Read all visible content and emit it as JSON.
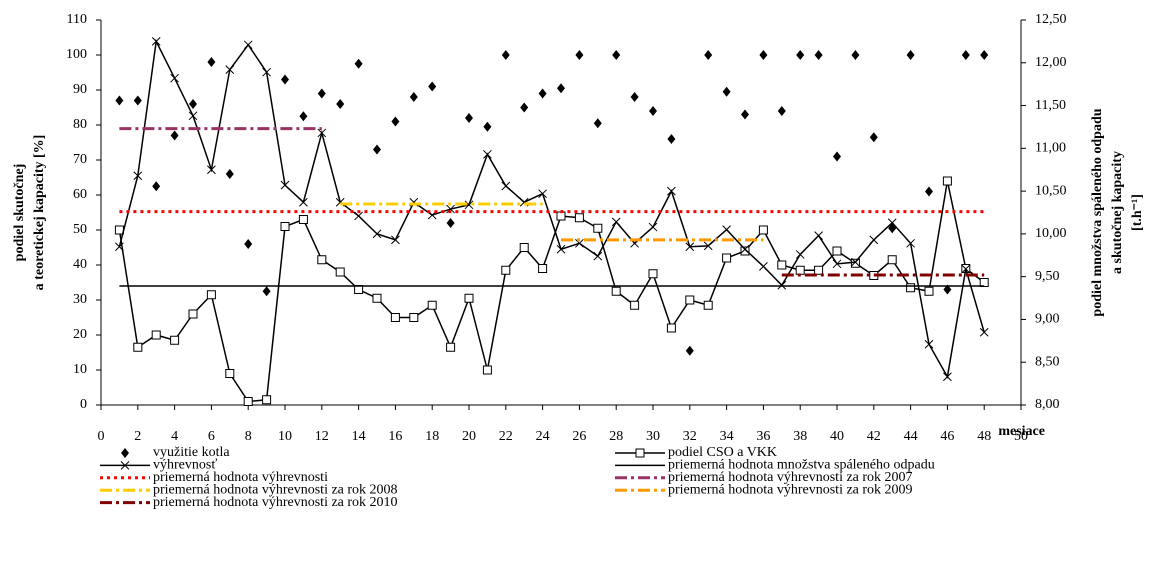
{
  "chart_data": {
    "type": "line",
    "x": [
      1,
      2,
      3,
      4,
      5,
      6,
      7,
      8,
      9,
      10,
      11,
      12,
      13,
      14,
      15,
      16,
      17,
      18,
      19,
      20,
      21,
      22,
      23,
      24,
      25,
      26,
      27,
      28,
      29,
      30,
      31,
      32,
      33,
      34,
      35,
      36,
      37,
      38,
      39,
      40,
      41,
      42,
      43,
      44,
      45,
      46,
      47,
      48
    ],
    "xlabel": "mesiace",
    "ylabel": [
      "podiel skutočnej",
      "a teoretickej kapacity [%]"
    ],
    "y2label": [
      "podiel množstva spáleného odpadu",
      "a skutočnej kapacity",
      "[t.h⁻¹]"
    ],
    "xlim": [
      0,
      50
    ],
    "xticks": [
      0,
      2,
      4,
      6,
      8,
      10,
      12,
      14,
      16,
      18,
      20,
      22,
      24,
      26,
      28,
      30,
      32,
      34,
      36,
      38,
      40,
      42,
      44,
      46,
      48,
      50
    ],
    "ylim": [
      0,
      110
    ],
    "yticks": [
      0,
      10,
      20,
      30,
      40,
      50,
      60,
      70,
      80,
      90,
      100,
      110
    ],
    "y2lim": [
      8,
      12.5
    ],
    "y2ticks": [
      {
        "value": 8,
        "label": "8,00"
      },
      {
        "value": 8.5,
        "label": "8,50"
      },
      {
        "value": 9,
        "label": "9,00"
      },
      {
        "value": 9.5,
        "label": "9,50"
      },
      {
        "value": 10,
        "label": "10,00"
      },
      {
        "value": 10.5,
        "label": "10,50"
      },
      {
        "value": 11,
        "label": "11,00"
      },
      {
        "value": 11.5,
        "label": "11,50"
      },
      {
        "value": 12,
        "label": "12,00"
      },
      {
        "value": 12.5,
        "label": "12,50"
      }
    ],
    "legend": "bottom",
    "series": [
      {
        "name": "využitie kotla",
        "color": "#000000",
        "marker": "diamond",
        "line": "none",
        "axis": "y",
        "values": [
          87,
          87,
          62.5,
          77,
          86,
          98,
          66,
          46,
          32.5,
          93,
          82.5,
          89,
          86,
          97.5,
          73,
          81,
          88,
          91,
          52,
          82,
          79.5,
          100,
          85,
          89,
          90.5,
          100,
          80.5,
          100,
          88,
          84,
          76,
          15.5,
          100,
          89.5,
          83,
          100,
          84,
          100,
          100,
          71,
          100,
          76.5,
          50.5,
          100,
          61,
          33,
          100,
          100
        ]
      },
      {
        "name": "podiel CSO a VKK",
        "color": "#000000",
        "marker": "square",
        "line": "solid",
        "axis": "y",
        "values": [
          50,
          16.5,
          20,
          18.5,
          26,
          31.5,
          9,
          1,
          1.5,
          51,
          53,
          41.5,
          38,
          33,
          30.5,
          25,
          25,
          28.5,
          16.5,
          30.5,
          10,
          38.5,
          45,
          39,
          54,
          53.5,
          50.5,
          32.5,
          28.5,
          37.5,
          22,
          30,
          28.5,
          42,
          44,
          50,
          40,
          38.5,
          38.5,
          44,
          40.5,
          37,
          41.5,
          33.5,
          32.5,
          64,
          39,
          35
        ]
      },
      {
        "name": "výhrevnosť",
        "color": "#000000",
        "marker": "x",
        "line": "solid",
        "axis": "y2",
        "values": [
          9.85,
          10.68,
          12.25,
          11.82,
          11.38,
          10.75,
          11.92,
          12.21,
          11.89,
          10.57,
          10.37,
          11.18,
          10.37,
          10.21,
          10.0,
          9.93,
          10.37,
          10.22,
          10.29,
          10.34,
          10.93,
          10.56,
          10.37,
          10.47,
          9.82,
          9.89,
          9.74,
          10.14,
          9.89,
          10.08,
          10.5,
          9.85,
          9.86,
          10.05,
          9.82,
          9.62,
          9.4,
          9.76,
          9.98,
          9.65,
          9.67,
          9.93,
          10.13,
          9.89,
          8.71,
          8.33,
          9.59,
          8.85
        ]
      },
      {
        "name": "priemerná hodnota množstva spáleného odpadu",
        "color": "#000000",
        "marker": "none",
        "line": "solid",
        "axis": "y",
        "x": [
          1,
          48
        ],
        "values": [
          34,
          34
        ]
      },
      {
        "name": "priemerná hodnota výhrevnosti",
        "color": "#ff0000",
        "marker": "none",
        "line": "dotted",
        "axis": "y2",
        "x": [
          1,
          48
        ],
        "values": [
          10.26,
          10.26
        ]
      },
      {
        "name": "priemerná hodnota výhrevnosti za rok 2007",
        "color": "#993366",
        "marker": "none",
        "line": "dashdot",
        "axis": "y2",
        "x": [
          1,
          12
        ],
        "values": [
          11.23,
          11.23
        ]
      },
      {
        "name": "priemerná hodnota výhrevnosti za rok 2008",
        "color": "#ffcc00",
        "marker": "none",
        "line": "dashdot",
        "axis": "y2",
        "x": [
          13,
          24
        ],
        "values": [
          10.35,
          10.35
        ]
      },
      {
        "name": "priemerná hodnota výhrevnosti za rok 2009",
        "color": "#ff9900",
        "marker": "none",
        "line": "dashdot",
        "axis": "y2",
        "x": [
          25,
          36
        ],
        "values": [
          9.93,
          9.93
        ]
      },
      {
        "name": "priemerná hodnota výhrevnosti za rok 2010",
        "color": "#800000",
        "marker": "none",
        "line": "dashdot",
        "axis": "y2",
        "x": [
          37,
          48
        ],
        "values": [
          9.52,
          9.52
        ]
      }
    ]
  }
}
